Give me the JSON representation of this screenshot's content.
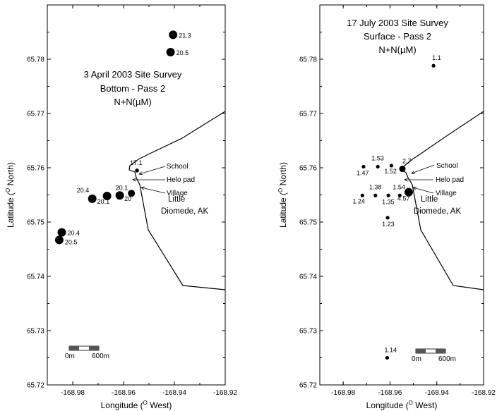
{
  "chart_data": [
    {
      "type": "scatter",
      "title_lines": [
        "3  April 2003 Site Survey",
        "Bottom - Pass 2",
        "N+N(µM)"
      ],
      "xlabel_prefix": "Longitude (",
      "xlabel_sup": "O",
      "xlabel_suffix": " West)",
      "ylabel_prefix": "Latitude (",
      "ylabel_sup": "O",
      "ylabel_suffix": " North)",
      "xlim": [
        -168.99,
        -168.92
      ],
      "ylim": [
        65.72,
        65.79
      ],
      "x_tick_labels": [
        "-168.98",
        "-168.96",
        "-168.94",
        "-168.92"
      ],
      "y_tick_labels": [
        "65.72",
        "65.73",
        "65.74",
        "65.75",
        "65.76",
        "65.77",
        "65.78"
      ],
      "grid": false,
      "points": [
        {
          "x": -168.9405,
          "y": 65.7845,
          "value": 21.3,
          "label": "21.3"
        },
        {
          "x": -168.9415,
          "y": 65.7813,
          "value": 20.5,
          "label": "20.5"
        },
        {
          "x": -168.9547,
          "y": 65.7595,
          "value": 17.1,
          "label": "17.1"
        },
        {
          "x": -168.9723,
          "y": 65.7543,
          "value": 20.4,
          "label": "20.4"
        },
        {
          "x": -168.9665,
          "y": 65.7548,
          "value": 20.1,
          "label": "20.1"
        },
        {
          "x": -168.9615,
          "y": 65.7549,
          "value": 20.1,
          "label": "20.1"
        },
        {
          "x": -168.9569,
          "y": 65.7553,
          "value": 20.0,
          "label": "20"
        },
        {
          "x": -168.9843,
          "y": 65.7481,
          "value": 20.4,
          "label": "20.4"
        },
        {
          "x": -168.9853,
          "y": 65.7467,
          "value": 20.5,
          "label": "20.5"
        }
      ],
      "annotations": [
        "School",
        "Helo pad",
        "Village"
      ],
      "place_name_lines": [
        "Little",
        "Diomede, AK"
      ],
      "scale_bar": {
        "start_label": "0m",
        "end_label": "600m"
      }
    },
    {
      "type": "scatter",
      "title_lines": [
        "17 July 2003 Site Survey",
        "Surface  - Pass 2",
        "N+N(µM)"
      ],
      "xlabel_prefix": "Longitude (",
      "xlabel_sup": "O",
      "xlabel_suffix": " West)",
      "ylabel_prefix": "Latitude (",
      "ylabel_sup": "O",
      "ylabel_suffix": " North)",
      "xlim": [
        -168.99,
        -168.92
      ],
      "ylim": [
        65.72,
        65.79
      ],
      "x_tick_labels": [
        "-168.98",
        "-168.96",
        "-168.94",
        "-168.92"
      ],
      "y_tick_labels": [
        "65.72",
        "65.73",
        "65.74",
        "65.75",
        "65.76",
        "65.77",
        "65.78"
      ],
      "grid": false,
      "points": [
        {
          "x": -168.9414,
          "y": 65.7788,
          "value": 1.1,
          "label": "1.1"
        },
        {
          "x": -168.9713,
          "y": 65.7602,
          "value": 1.47,
          "label": "1.47"
        },
        {
          "x": -168.9652,
          "y": 65.7602,
          "value": 1.53,
          "label": "1.53"
        },
        {
          "x": -168.9594,
          "y": 65.7604,
          "value": 1.52,
          "label": "1.52"
        },
        {
          "x": -168.9547,
          "y": 65.7598,
          "value": 2.7,
          "label": "2.7"
        },
        {
          "x": -168.9718,
          "y": 65.7549,
          "value": 1.24,
          "label": "1.24"
        },
        {
          "x": -168.9662,
          "y": 65.7549,
          "value": 1.38,
          "label": "1.38"
        },
        {
          "x": -168.9607,
          "y": 65.7549,
          "value": 1.35,
          "label": "1.35"
        },
        {
          "x": -168.9558,
          "y": 65.7549,
          "value": 1.54,
          "label": "1.54"
        },
        {
          "x": -168.952,
          "y": 65.7555,
          "value": 4.57,
          "label": "4.57"
        },
        {
          "x": -168.961,
          "y": 65.7508,
          "value": 1.23,
          "label": "1.23"
        },
        {
          "x": -168.9612,
          "y": 65.725,
          "value": 1.14,
          "label": "1.14"
        }
      ],
      "annotations": [
        "School",
        "Helo pad",
        "Village"
      ],
      "place_name_lines": [
        "Little",
        "Diomede, AK"
      ],
      "scale_bar": {
        "start_label": "0m",
        "end_label": "600m"
      }
    }
  ]
}
